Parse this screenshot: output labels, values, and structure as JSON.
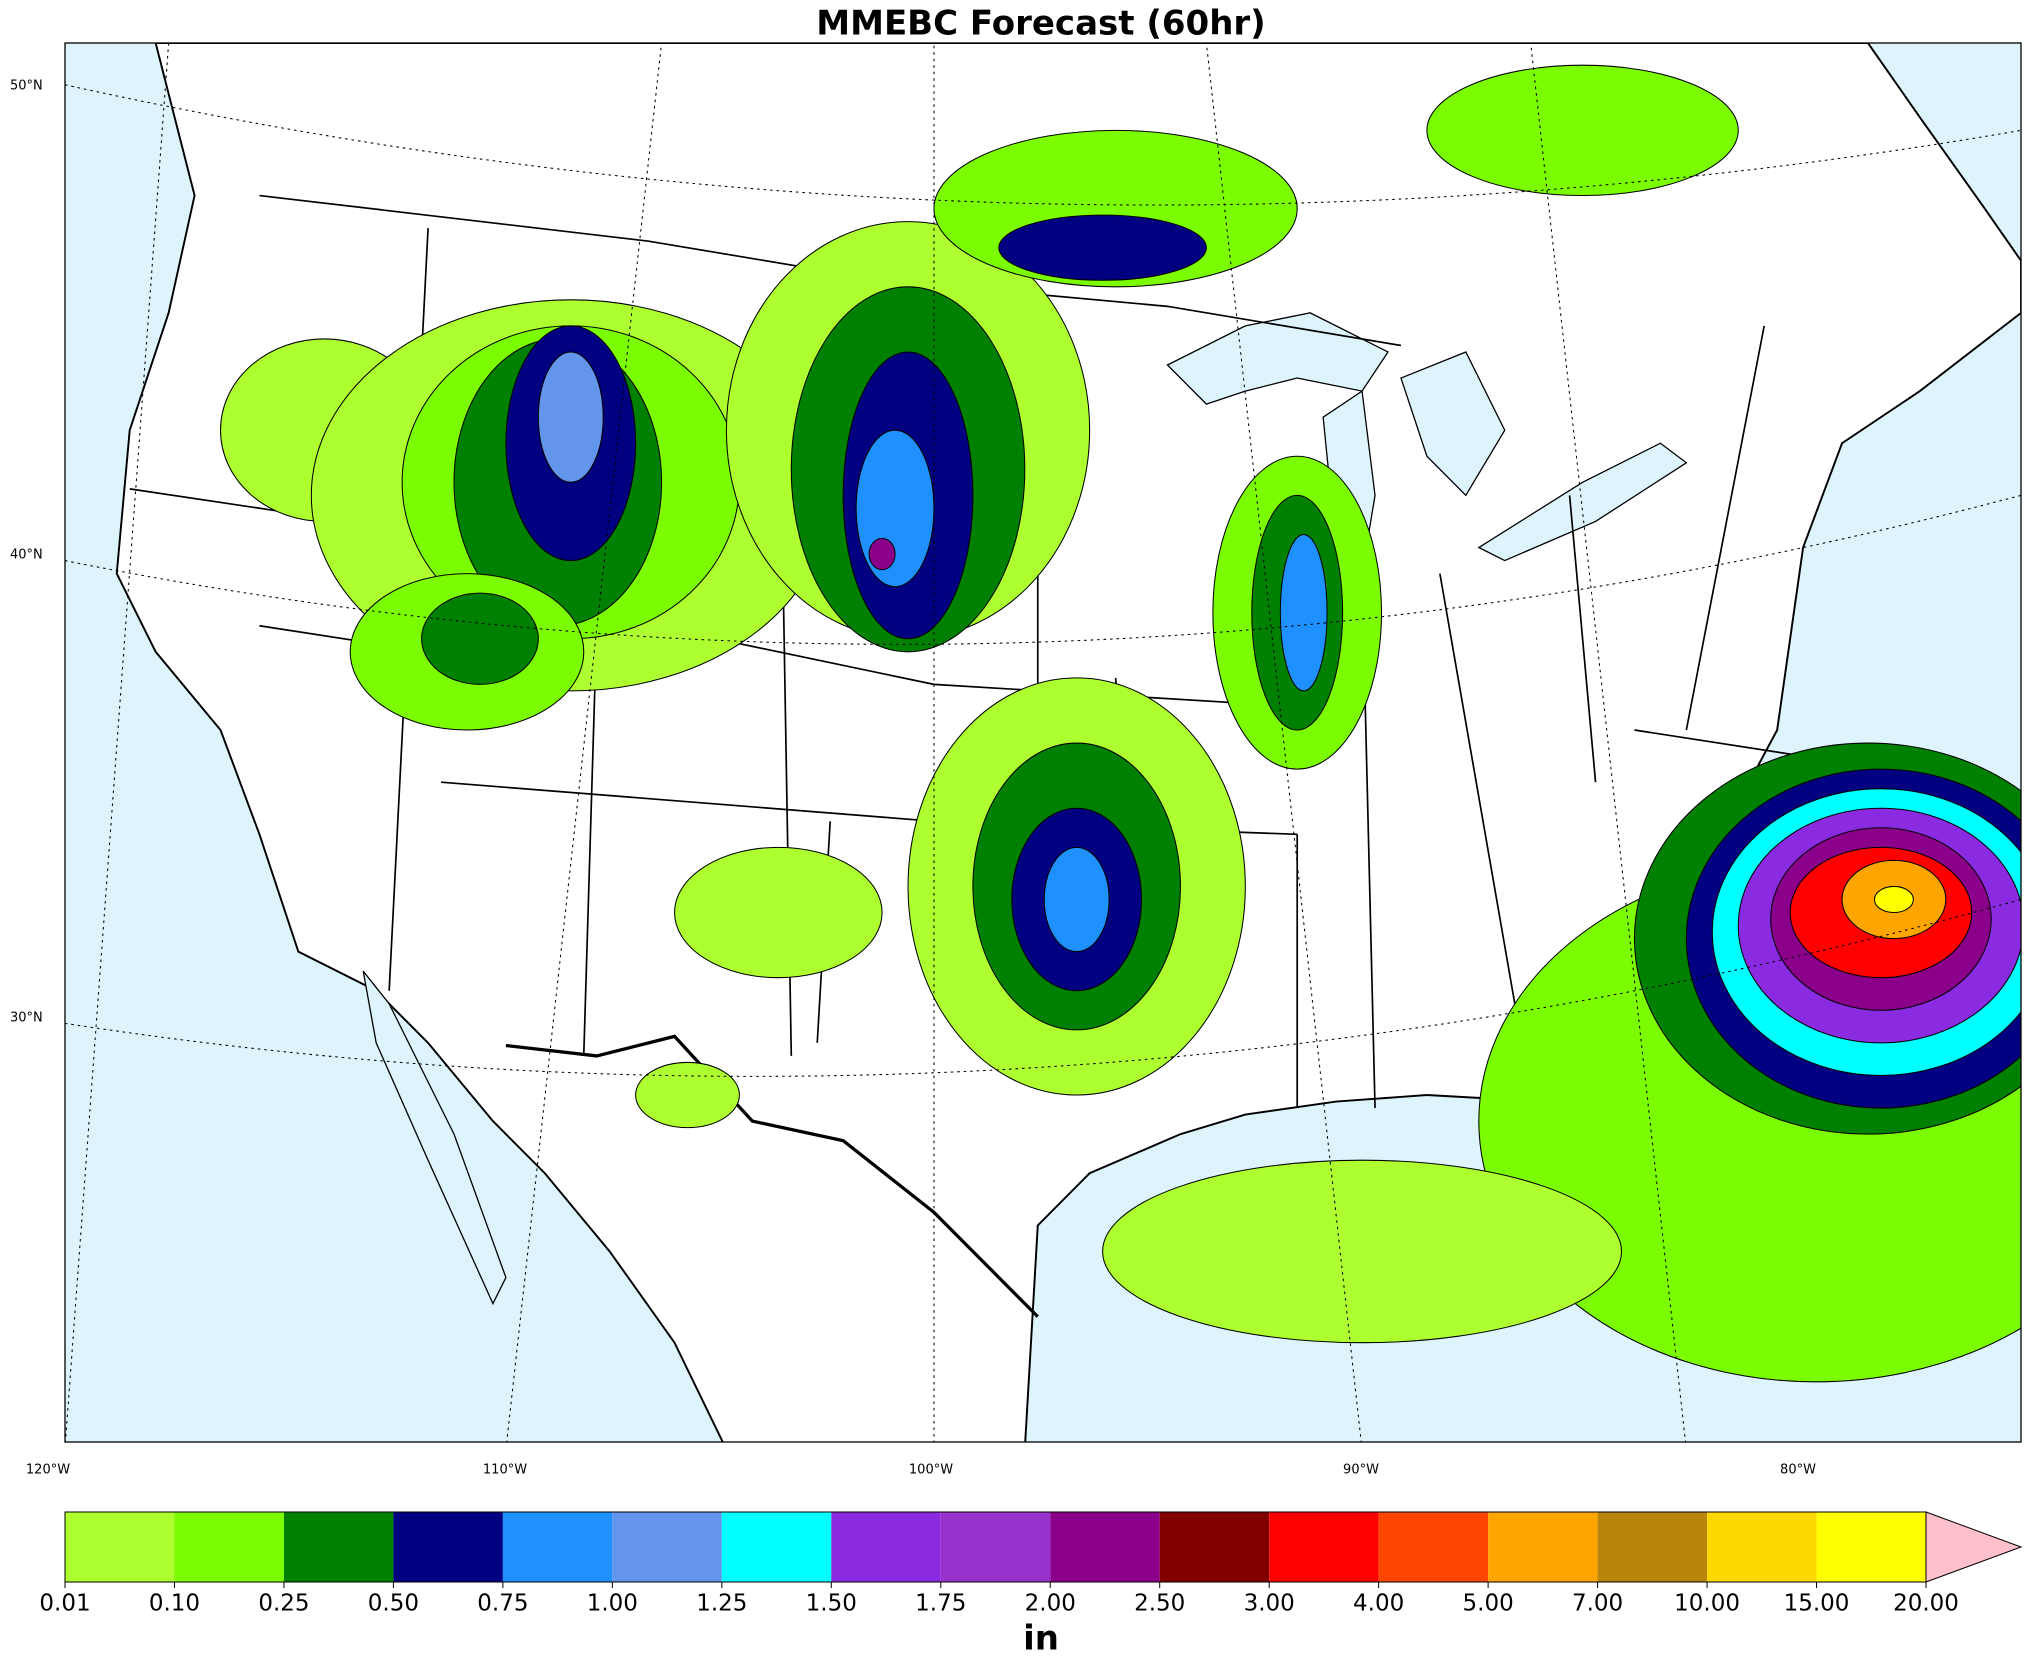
{
  "title": "MMEBC Forecast (60hr)",
  "map": {
    "lat_labels": [
      "50°N",
      "40°N",
      "30°N"
    ],
    "lon_labels": [
      "120°W",
      "110°W",
      "100°W",
      "90°W",
      "80°W"
    ]
  },
  "colorbar": {
    "bounds": [
      {
        "value": 0.01,
        "label": "0.01"
      },
      {
        "value": 0.1,
        "label": "0.10"
      },
      {
        "value": 0.25,
        "label": "0.25"
      },
      {
        "value": 0.5,
        "label": "0.50"
      },
      {
        "value": 0.75,
        "label": "0.75"
      },
      {
        "value": 1,
        "label": "1.00"
      },
      {
        "value": 1.25,
        "label": "1.25"
      },
      {
        "value": 1.5,
        "label": "1.50"
      },
      {
        "value": 1.75,
        "label": "1.75"
      },
      {
        "value": 2,
        "label": "2.00"
      },
      {
        "value": 2.5,
        "label": "2.50"
      },
      {
        "value": 3,
        "label": "3.00"
      },
      {
        "value": 4,
        "label": "4.00"
      },
      {
        "value": 5,
        "label": "5.00"
      },
      {
        "value": 7,
        "label": "7.00"
      },
      {
        "value": 10,
        "label": "10.00"
      },
      {
        "value": 15,
        "label": "15.00"
      },
      {
        "value": 20,
        "label": "20.00"
      }
    ],
    "colors": [
      "#adff2f",
      "#7cfc00",
      "#008000",
      "#000080",
      "#1e90ff",
      "#6495ed",
      "#00ffff",
      "#8a2be2",
      "#9932cc",
      "#8b008b",
      "#800000",
      "#ff0000",
      "#ff4500",
      "#ffa500",
      "#b8860b",
      "#ffd700",
      "#ffff00"
    ],
    "extend_color": "#ffc0cb",
    "label": "in"
  }
}
